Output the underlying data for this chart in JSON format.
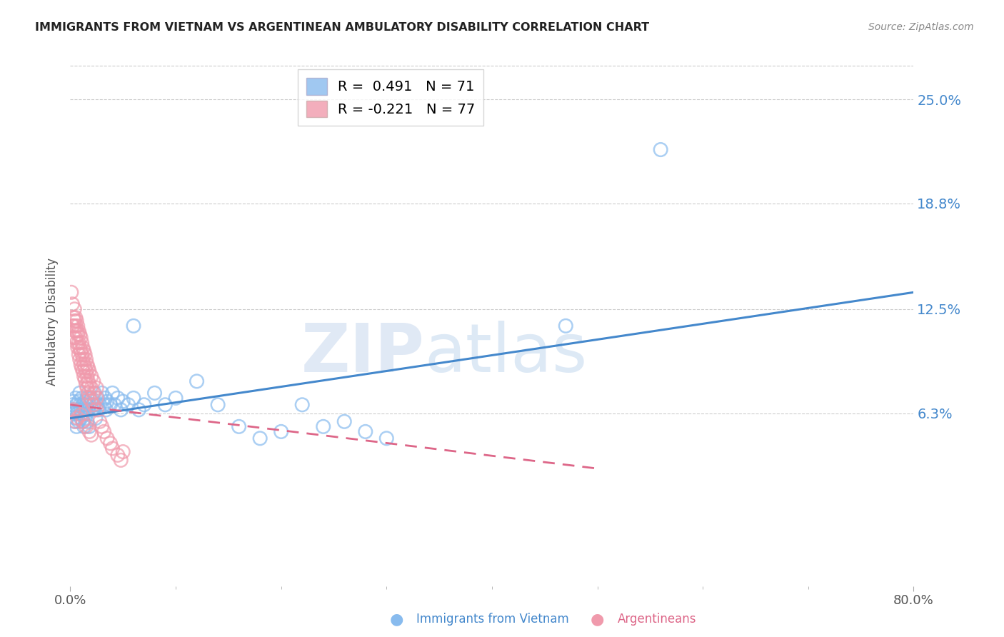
{
  "title": "IMMIGRANTS FROM VIETNAM VS ARGENTINEAN AMBULATORY DISABILITY CORRELATION CHART",
  "source": "Source: ZipAtlas.com",
  "ylabel": "Ambulatory Disability",
  "ytick_labels": [
    "6.3%",
    "12.5%",
    "18.8%",
    "25.0%"
  ],
  "ytick_values": [
    0.063,
    0.125,
    0.188,
    0.25
  ],
  "xmin": 0.0,
  "xmax": 0.8,
  "ymin": -0.04,
  "ymax": 0.275,
  "legend_r1": "R =  0.491   N = 71",
  "legend_r2": "R = -0.221   N = 77",
  "color_blue": "#88bbee",
  "color_pink": "#f09aac",
  "watermark_zip": "ZIP",
  "watermark_atlas": "atlas",
  "vietnam_trend_x": [
    0.0,
    0.8
  ],
  "vietnam_trend_y": [
    0.06,
    0.135
  ],
  "argentina_trend_x": [
    0.0,
    0.5
  ],
  "argentina_trend_y": [
    0.068,
    0.03
  ],
  "vietnam_scatter": [
    [
      0.002,
      0.068
    ],
    [
      0.003,
      0.063
    ],
    [
      0.003,
      0.07
    ],
    [
      0.004,
      0.065
    ],
    [
      0.004,
      0.058
    ],
    [
      0.005,
      0.072
    ],
    [
      0.005,
      0.06
    ],
    [
      0.006,
      0.068
    ],
    [
      0.006,
      0.055
    ],
    [
      0.007,
      0.065
    ],
    [
      0.007,
      0.063
    ],
    [
      0.008,
      0.07
    ],
    [
      0.008,
      0.058
    ],
    [
      0.009,
      0.068
    ],
    [
      0.009,
      0.075
    ],
    [
      0.01,
      0.06
    ],
    [
      0.01,
      0.065
    ],
    [
      0.011,
      0.063
    ],
    [
      0.011,
      0.072
    ],
    [
      0.012,
      0.058
    ],
    [
      0.012,
      0.068
    ],
    [
      0.013,
      0.065
    ],
    [
      0.013,
      0.055
    ],
    [
      0.014,
      0.07
    ],
    [
      0.014,
      0.06
    ],
    [
      0.015,
      0.068
    ],
    [
      0.015,
      0.063
    ],
    [
      0.016,
      0.072
    ],
    [
      0.016,
      0.058
    ],
    [
      0.017,
      0.065
    ],
    [
      0.018,
      0.068
    ],
    [
      0.018,
      0.055
    ],
    [
      0.02,
      0.072
    ],
    [
      0.021,
      0.065
    ],
    [
      0.022,
      0.068
    ],
    [
      0.023,
      0.075
    ],
    [
      0.024,
      0.06
    ],
    [
      0.025,
      0.068
    ],
    [
      0.026,
      0.072
    ],
    [
      0.027,
      0.065
    ],
    [
      0.028,
      0.068
    ],
    [
      0.03,
      0.075
    ],
    [
      0.032,
      0.068
    ],
    [
      0.033,
      0.072
    ],
    [
      0.034,
      0.065
    ],
    [
      0.035,
      0.07
    ],
    [
      0.038,
      0.068
    ],
    [
      0.04,
      0.075
    ],
    [
      0.042,
      0.068
    ],
    [
      0.045,
      0.072
    ],
    [
      0.048,
      0.065
    ],
    [
      0.05,
      0.07
    ],
    [
      0.055,
      0.068
    ],
    [
      0.06,
      0.072
    ],
    [
      0.065,
      0.065
    ],
    [
      0.07,
      0.068
    ],
    [
      0.08,
      0.075
    ],
    [
      0.09,
      0.068
    ],
    [
      0.1,
      0.072
    ],
    [
      0.12,
      0.082
    ],
    [
      0.14,
      0.068
    ],
    [
      0.16,
      0.055
    ],
    [
      0.18,
      0.048
    ],
    [
      0.2,
      0.052
    ],
    [
      0.22,
      0.068
    ],
    [
      0.24,
      0.055
    ],
    [
      0.26,
      0.058
    ],
    [
      0.28,
      0.052
    ],
    [
      0.3,
      0.048
    ],
    [
      0.06,
      0.115
    ],
    [
      0.47,
      0.115
    ],
    [
      0.56,
      0.22
    ]
  ],
  "argentina_scatter": [
    [
      0.001,
      0.135
    ],
    [
      0.002,
      0.128
    ],
    [
      0.002,
      0.115
    ],
    [
      0.003,
      0.12
    ],
    [
      0.003,
      0.108
    ],
    [
      0.003,
      0.115
    ],
    [
      0.004,
      0.125
    ],
    [
      0.004,
      0.112
    ],
    [
      0.004,
      0.118
    ],
    [
      0.005,
      0.12
    ],
    [
      0.005,
      0.108
    ],
    [
      0.005,
      0.115
    ],
    [
      0.006,
      0.118
    ],
    [
      0.006,
      0.105
    ],
    [
      0.006,
      0.112
    ],
    [
      0.007,
      0.115
    ],
    [
      0.007,
      0.102
    ],
    [
      0.007,
      0.11
    ],
    [
      0.008,
      0.112
    ],
    [
      0.008,
      0.098
    ],
    [
      0.008,
      0.105
    ],
    [
      0.009,
      0.11
    ],
    [
      0.009,
      0.095
    ],
    [
      0.009,
      0.102
    ],
    [
      0.01,
      0.108
    ],
    [
      0.01,
      0.092
    ],
    [
      0.01,
      0.1
    ],
    [
      0.011,
      0.105
    ],
    [
      0.011,
      0.09
    ],
    [
      0.011,
      0.098
    ],
    [
      0.012,
      0.102
    ],
    [
      0.012,
      0.088
    ],
    [
      0.012,
      0.095
    ],
    [
      0.013,
      0.1
    ],
    [
      0.013,
      0.085
    ],
    [
      0.013,
      0.092
    ],
    [
      0.014,
      0.098
    ],
    [
      0.014,
      0.083
    ],
    [
      0.014,
      0.09
    ],
    [
      0.015,
      0.095
    ],
    [
      0.015,
      0.08
    ],
    [
      0.015,
      0.088
    ],
    [
      0.016,
      0.092
    ],
    [
      0.016,
      0.078
    ],
    [
      0.016,
      0.085
    ],
    [
      0.017,
      0.09
    ],
    [
      0.017,
      0.075
    ],
    [
      0.017,
      0.082
    ],
    [
      0.018,
      0.088
    ],
    [
      0.018,
      0.072
    ],
    [
      0.018,
      0.08
    ],
    [
      0.02,
      0.085
    ],
    [
      0.02,
      0.07
    ],
    [
      0.02,
      0.078
    ],
    [
      0.022,
      0.082
    ],
    [
      0.022,
      0.068
    ],
    [
      0.022,
      0.075
    ],
    [
      0.025,
      0.078
    ],
    [
      0.025,
      0.065
    ],
    [
      0.025,
      0.072
    ],
    [
      0.028,
      0.058
    ],
    [
      0.03,
      0.055
    ],
    [
      0.032,
      0.052
    ],
    [
      0.035,
      0.048
    ],
    [
      0.038,
      0.045
    ],
    [
      0.04,
      0.042
    ],
    [
      0.045,
      0.038
    ],
    [
      0.048,
      0.035
    ],
    [
      0.05,
      0.04
    ],
    [
      0.003,
      0.065
    ],
    [
      0.005,
      0.058
    ],
    [
      0.007,
      0.06
    ],
    [
      0.01,
      0.062
    ],
    [
      0.012,
      0.058
    ],
    [
      0.015,
      0.055
    ],
    [
      0.018,
      0.052
    ],
    [
      0.02,
      0.05
    ]
  ]
}
